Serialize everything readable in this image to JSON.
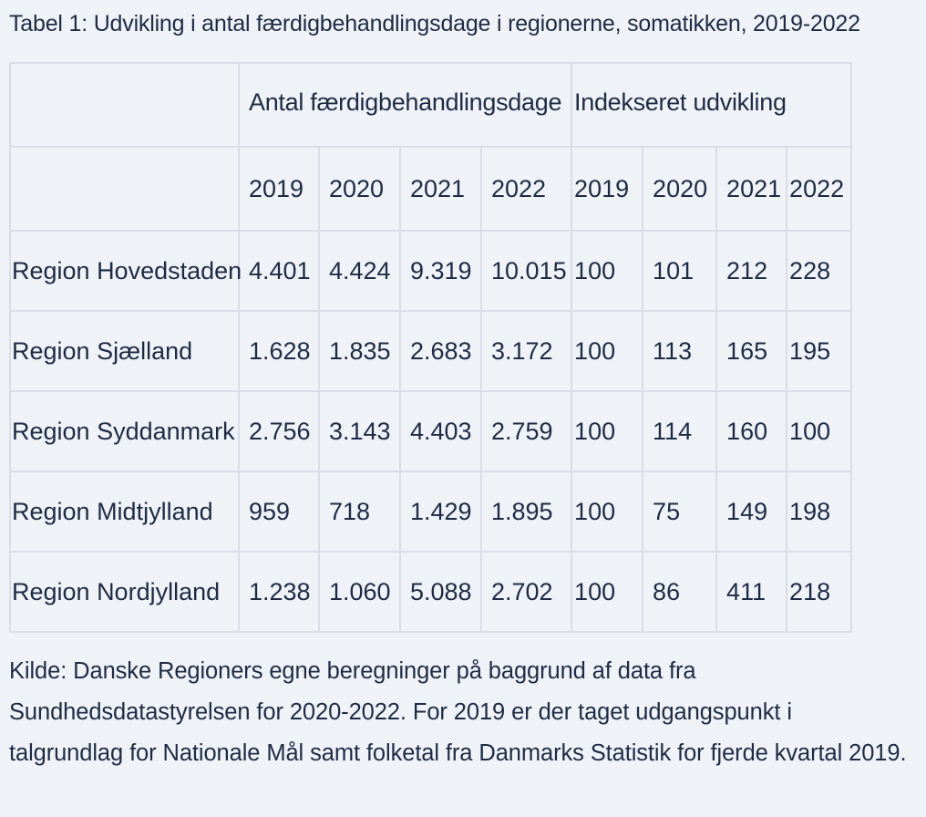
{
  "title": "Tabel 1: Udvikling i antal færdigbehandlingsdage i regionerne, somatikken, 2019-2022",
  "table": {
    "group_headers": [
      "Antal færdigbehandlingsdage",
      "Indekseret udvikling"
    ],
    "years": [
      "2019",
      "2020",
      "2021",
      "2022",
      "2019",
      "2020",
      "2021",
      "2022"
    ],
    "rows": [
      {
        "region": "Region Hovedstaden",
        "values": [
          "4.401",
          "4.424",
          "9.319",
          "10.015",
          "100",
          "101",
          "212",
          "228"
        ]
      },
      {
        "region": "Region Sjælland",
        "values": [
          "1.628",
          "1.835",
          "2.683",
          "3.172",
          "100",
          "113",
          "165",
          "195"
        ]
      },
      {
        "region": "Region Syddanmark",
        "values": [
          "2.756",
          "3.143",
          "4.403",
          "2.759",
          "100",
          "114",
          "160",
          "100"
        ]
      },
      {
        "region": "Region Midtjylland",
        "values": [
          "959",
          "718",
          "1.429",
          "1.895",
          "100",
          "75",
          "149",
          "198"
        ]
      },
      {
        "region": "Region Nordjylland",
        "values": [
          "1.238",
          "1.060",
          "5.088",
          "2.702",
          "100",
          "86",
          "411",
          "218"
        ]
      }
    ]
  },
  "source_note": "Kilde: Danske Regioners egne beregninger på baggrund af data fra Sundhedsdatastyrelsen for 2020-2022. For 2019 er der taget udgangspunkt i talgrundlag for Nationale Mål samt folketal fra Danmarks Statistik for fjerde kvartal 2019.",
  "colors": {
    "background": "#eff3f8",
    "text": "#1f2b44",
    "grid_lines": "#d9dde5"
  }
}
